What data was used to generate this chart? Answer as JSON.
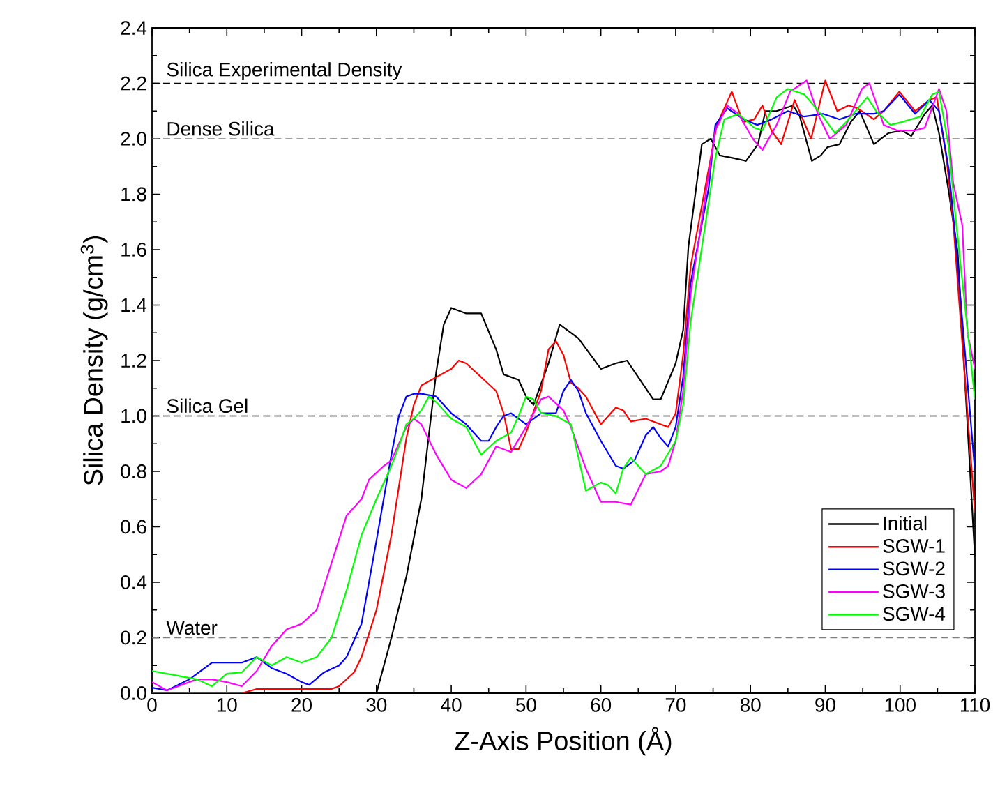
{
  "chart_data": {
    "type": "line",
    "xlabel": "Z-Axis Position (Å)",
    "ylabel": "Silica Density (g/cm$^{3}$)",
    "xlim": [
      0,
      110
    ],
    "ylim": [
      0,
      2.4
    ],
    "xticks": [
      0,
      10,
      20,
      30,
      40,
      50,
      60,
      70,
      80,
      90,
      100,
      110
    ],
    "yticks": [
      {
        "value": 0,
        "label": "0.0"
      },
      {
        "value": 0.2,
        "label": "0.2"
      },
      {
        "value": 0.4,
        "label": "0.4"
      },
      {
        "value": 0.6,
        "label": "0.6"
      },
      {
        "value": 0.8,
        "label": "0.8"
      },
      {
        "value": 1.0,
        "label": "1.0"
      },
      {
        "value": 1.2,
        "label": "1.2"
      },
      {
        "value": 1.4,
        "label": "1.4"
      },
      {
        "value": 1.6,
        "label": "1.6"
      },
      {
        "value": 1.8,
        "label": "1.8"
      },
      {
        "value": 2.0,
        "label": "2.0"
      },
      {
        "value": 2.2,
        "label": "2.2"
      },
      {
        "value": 2.4,
        "label": "2.4"
      }
    ],
    "legend": "bottom right",
    "ref_lines": [
      {
        "axis": "y",
        "value": 2.2,
        "label": "Silica Experimental Density",
        "color": "#000000",
        "line_style": "dashed"
      },
      {
        "axis": "y",
        "value": 2.0,
        "label": "Dense Silica",
        "color": "#808080",
        "line_style": "dashed"
      },
      {
        "axis": "y",
        "value": 1.0,
        "label": "Silica Gel",
        "color": "#000000",
        "line_style": "dashed"
      },
      {
        "axis": "y",
        "value": 0.2,
        "label": "Water",
        "color": "#808080",
        "line_style": "dashed"
      }
    ],
    "series": [
      {
        "name": "Initial",
        "color": "#000000",
        "x": [
          0,
          28,
          30,
          32,
          34,
          36,
          38,
          39,
          40,
          42,
          44,
          46,
          47,
          49,
          50,
          51,
          53,
          54.5,
          57,
          60,
          62,
          63.5,
          65,
          67,
          68,
          70,
          71,
          71.7,
          73.5,
          74.7,
          75.9,
          77.8,
          79.4,
          81,
          82,
          83.5,
          85.7,
          86.6,
          88.2,
          89.4,
          90.3,
          91.9,
          93.4,
          94.6,
          96.5,
          98.4,
          100.2,
          101.5,
          103.3,
          104.3,
          105.2,
          106.5,
          107.7,
          110
        ],
        "values": [
          0,
          0,
          0,
          0.2,
          0.42,
          0.7,
          1.16,
          1.33,
          1.39,
          1.37,
          1.37,
          1.24,
          1.15,
          1.13,
          1.07,
          1.04,
          1.19,
          1.33,
          1.28,
          1.17,
          1.19,
          1.2,
          1.14,
          1.06,
          1.06,
          1.19,
          1.31,
          1.61,
          1.98,
          2.0,
          1.94,
          1.93,
          1.92,
          1.98,
          2.1,
          2.1,
          2.12,
          2.08,
          1.92,
          1.94,
          1.97,
          1.98,
          2.06,
          2.1,
          1.98,
          2.02,
          2.03,
          2.01,
          2.09,
          2.12,
          2.02,
          1.81,
          1.59,
          0.49
        ]
      },
      {
        "name": "SGW-1",
        "color": "#ff0000",
        "x": [
          0,
          12,
          14,
          24,
          25,
          27,
          28,
          30,
          32,
          34,
          35,
          36,
          38,
          40,
          41,
          42,
          44,
          46,
          47,
          48,
          49,
          50,
          52,
          53,
          54,
          55,
          56,
          57,
          58,
          60,
          62,
          63,
          64,
          66,
          68,
          69,
          70,
          71,
          72,
          74.4,
          75.5,
          77.5,
          79,
          80.5,
          81.6,
          82.8,
          84.1,
          85.9,
          88.1,
          90,
          91.6,
          93.1,
          94.3,
          96.5,
          97.8,
          99.9,
          102,
          103.9,
          104.9,
          106.2,
          107.1,
          110
        ],
        "values": [
          0,
          0,
          0.015,
          0.015,
          0.025,
          0.075,
          0.13,
          0.3,
          0.57,
          0.92,
          1.04,
          1.11,
          1.14,
          1.17,
          1.2,
          1.19,
          1.14,
          1.09,
          1.01,
          0.88,
          0.88,
          0.94,
          1.09,
          1.24,
          1.27,
          1.22,
          1.12,
          1.1,
          1.07,
          0.97,
          1.03,
          1.02,
          0.98,
          0.99,
          0.97,
          0.96,
          1.01,
          1.22,
          1.54,
          null,
          2.05,
          2.17,
          2.06,
          2.07,
          2.12,
          2.03,
          1.98,
          2.14,
          2.0,
          2.21,
          2.1,
          2.12,
          2.11,
          2.07,
          2.1,
          2.17,
          2.1,
          2.14,
          2.15,
          1.93,
          1.7,
          0.65
        ]
      },
      {
        "name": "SGW-2",
        "color": "#0000ff",
        "x": [
          0,
          2,
          5,
          8,
          10,
          12,
          14,
          16,
          18,
          20,
          21,
          23,
          25,
          26,
          28,
          30,
          32,
          33,
          34,
          35,
          36,
          38,
          40,
          42,
          44,
          45,
          46,
          47,
          48,
          50,
          52,
          54,
          55,
          56,
          57,
          58,
          60,
          62,
          63,
          64.5,
          66,
          67,
          68,
          69,
          70,
          71,
          72,
          74.4,
          75.3,
          76.9,
          79.1,
          80.9,
          82.8,
          85,
          87.2,
          89.7,
          91.9,
          94,
          96.5,
          97.8,
          99.9,
          102,
          103.9,
          105.2,
          106.5,
          107.4,
          110
        ],
        "values": [
          0.02,
          0.01,
          0.05,
          0.11,
          0.11,
          0.11,
          0.13,
          0.09,
          0.07,
          0.04,
          0.03,
          0.075,
          0.1,
          0.13,
          0.25,
          0.55,
          0.86,
          1.0,
          1.07,
          1.08,
          1.08,
          1.07,
          1.01,
          0.97,
          0.91,
          0.91,
          0.96,
          1.0,
          1.01,
          0.97,
          1.01,
          1.01,
          1.09,
          1.13,
          1.09,
          1.01,
          0.91,
          0.82,
          0.81,
          0.84,
          0.93,
          0.96,
          0.92,
          0.89,
          0.96,
          1.14,
          1.48,
          1.82,
          2.05,
          2.11,
          2.07,
          2.05,
          2.07,
          2.1,
          2.08,
          2.09,
          2.07,
          2.09,
          2.09,
          2.1,
          2.16,
          2.09,
          2.14,
          2.1,
          1.89,
          1.64,
          0.8
        ]
      },
      {
        "name": "SGW-3",
        "color": "#ff00ff",
        "x": [
          0,
          2,
          4,
          6,
          8,
          10,
          12,
          14,
          16,
          18,
          20,
          22,
          24,
          26,
          28,
          29,
          31,
          32,
          34,
          35,
          36,
          38,
          40,
          42,
          44,
          46,
          47,
          48,
          50,
          52,
          53,
          55,
          56,
          58,
          60,
          62,
          64,
          66,
          68,
          69,
          70,
          71,
          72,
          75.3,
          76.9,
          78.4,
          80.3,
          81.6,
          83.5,
          85.3,
          87.5,
          89,
          90.6,
          92.8,
          94.9,
          95.9,
          97.8,
          99.6,
          102,
          103.3,
          105.2,
          106.2,
          107.1,
          108.3,
          109,
          110
        ],
        "values": [
          0.04,
          0.01,
          0.03,
          0.05,
          0.05,
          0.04,
          0.025,
          0.08,
          0.17,
          0.23,
          0.25,
          0.3,
          0.47,
          0.64,
          0.7,
          0.77,
          0.82,
          0.84,
          0.96,
          0.99,
          0.97,
          0.86,
          0.77,
          0.74,
          0.79,
          0.89,
          0.88,
          0.87,
          0.96,
          1.06,
          1.07,
          1.02,
          0.96,
          0.81,
          0.69,
          0.69,
          0.68,
          0.79,
          0.8,
          0.82,
          0.91,
          1.09,
          1.44,
          2.03,
          2.12,
          2.09,
          2.0,
          1.96,
          2.05,
          2.17,
          2.21,
          2.09,
          2.0,
          2.05,
          2.18,
          2.2,
          2.05,
          2.03,
          2.03,
          2.04,
          2.18,
          2.1,
          1.84,
          1.69,
          1.3,
          1.17
        ]
      },
      {
        "name": "SGW-4",
        "color": "#00ff00",
        "x": [
          0,
          2,
          4,
          6,
          8,
          10,
          12,
          14,
          16,
          18,
          20,
          22,
          24,
          26,
          27,
          28,
          30,
          32,
          33,
          34,
          35,
          36,
          37,
          38,
          40,
          42,
          44,
          46,
          48,
          49,
          50,
          51,
          52,
          54,
          56,
          58,
          60,
          61,
          62,
          63,
          64,
          66,
          68,
          70,
          71,
          72,
          75.3,
          76.5,
          78.4,
          80.5,
          81.6,
          83.5,
          85,
          87.2,
          89.7,
          91.3,
          92.8,
          95.6,
          96.8,
          98.7,
          100.2,
          102.7,
          104.3,
          105.2,
          106.5,
          107.4,
          110
        ],
        "values": [
          0.08,
          0.07,
          0.06,
          0.05,
          0.025,
          0.07,
          0.075,
          0.13,
          0.1,
          0.13,
          0.11,
          0.13,
          0.2,
          0.37,
          0.47,
          0.57,
          0.7,
          0.82,
          0.89,
          0.97,
          0.99,
          1.02,
          1.07,
          1.05,
          0.99,
          0.96,
          0.86,
          0.91,
          0.94,
          1.0,
          1.07,
          1.06,
          1.01,
          1.0,
          0.97,
          0.73,
          0.76,
          0.75,
          0.72,
          0.81,
          0.85,
          0.79,
          0.82,
          0.91,
          1.04,
          1.34,
          1.93,
          2.07,
          2.09,
          2.04,
          2.03,
          2.15,
          2.18,
          2.16,
          2.08,
          2.02,
          2.06,
          2.15,
          2.1,
          2.05,
          2.06,
          2.08,
          2.16,
          2.17,
          1.97,
          1.72,
          1.06
        ]
      }
    ]
  }
}
